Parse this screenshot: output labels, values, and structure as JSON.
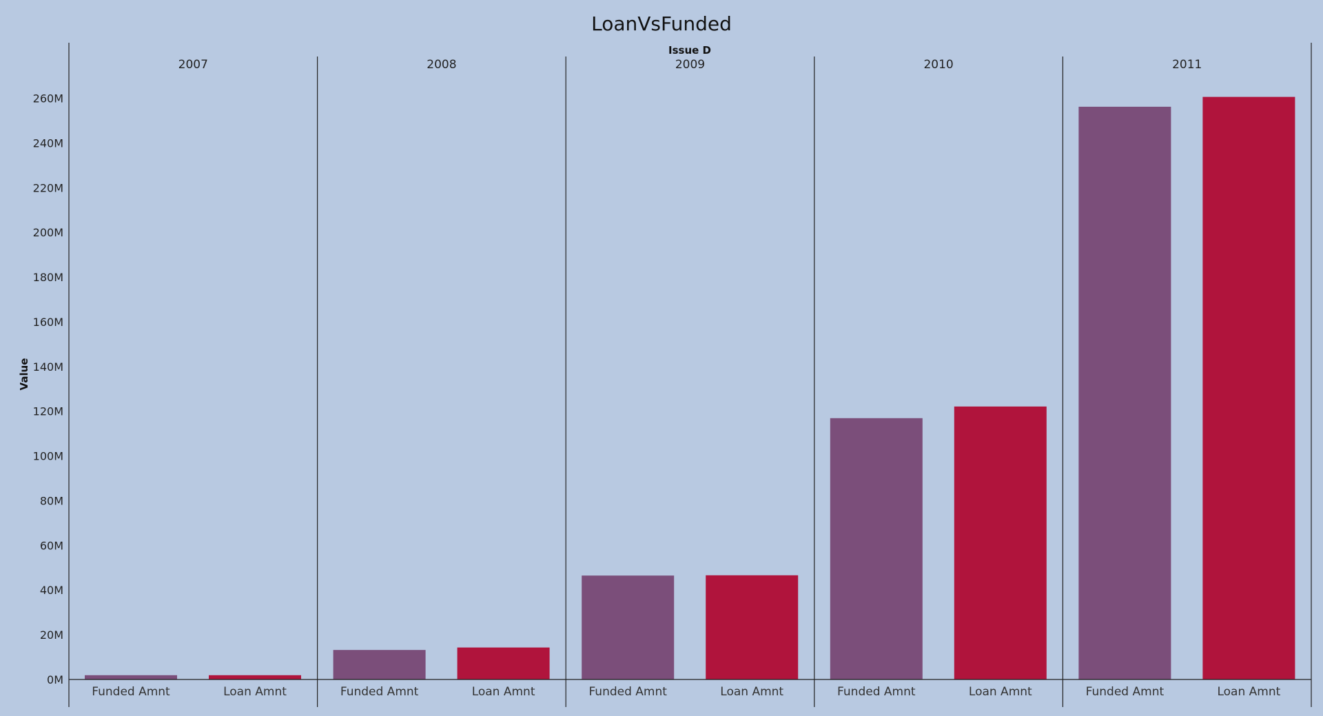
{
  "chart_data": {
    "type": "bar",
    "title": "LoanVsFunded",
    "column_header_title": "Issue D",
    "ylabel": "Value",
    "ylim": [
      0,
      270000000
    ],
    "yticks": [
      0,
      20000000,
      40000000,
      60000000,
      80000000,
      100000000,
      120000000,
      140000000,
      160000000,
      180000000,
      200000000,
      220000000,
      240000000,
      260000000
    ],
    "ytick_labels": [
      "0M",
      "20M",
      "40M",
      "60M",
      "80M",
      "100M",
      "120M",
      "140M",
      "160M",
      "180M",
      "200M",
      "220M",
      "240M",
      "260M"
    ],
    "measures": [
      "Funded Amnt",
      "Loan Amnt"
    ],
    "groups": [
      {
        "year": "2007",
        "values": [
          1900000,
          1900000
        ]
      },
      {
        "year": "2008",
        "values": [
          13200000,
          14300000
        ]
      },
      {
        "year": "2009",
        "values": [
          46500000,
          46600000
        ]
      },
      {
        "year": "2010",
        "values": [
          116900000,
          122100000
        ]
      },
      {
        "year": "2011",
        "values": [
          256200000,
          260600000
        ]
      }
    ],
    "colors": {
      "Funded Amnt": "#7b4e7a",
      "Loan Amnt": "#b0143c"
    },
    "grid": false,
    "legend": "none"
  }
}
